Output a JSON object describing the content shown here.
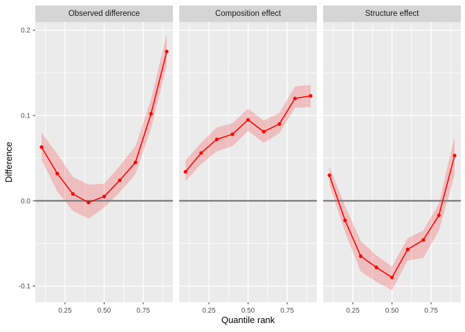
{
  "chart_data": {
    "type": "line",
    "title": "",
    "xlabel": "Quantile rank",
    "ylabel": "Difference",
    "x": [
      0.1,
      0.2,
      0.3,
      0.4,
      0.5,
      0.6,
      0.7,
      0.8,
      0.9
    ],
    "facets": [
      {
        "label": "Observed difference",
        "values": [
          0.063,
          0.032,
          0.008,
          -0.002,
          0.005,
          0.024,
          0.045,
          0.102,
          0.175
        ],
        "lower": [
          0.048,
          0.011,
          -0.012,
          -0.021,
          -0.008,
          0.01,
          0.031,
          0.085,
          0.158
        ],
        "upper": [
          0.08,
          0.055,
          0.028,
          0.019,
          0.02,
          0.041,
          0.064,
          0.119,
          0.196
        ]
      },
      {
        "label": "Composition effect",
        "values": [
          0.034,
          0.056,
          0.072,
          0.078,
          0.095,
          0.081,
          0.09,
          0.12,
          0.123
        ],
        "lower": [
          0.023,
          0.043,
          0.058,
          0.064,
          0.082,
          0.068,
          0.079,
          0.109,
          0.11
        ],
        "upper": [
          0.047,
          0.068,
          0.086,
          0.091,
          0.108,
          0.094,
          0.103,
          0.134,
          0.136
        ]
      },
      {
        "label": "Structure effect",
        "values": [
          0.03,
          -0.023,
          -0.065,
          -0.078,
          -0.09,
          -0.057,
          -0.046,
          -0.017,
          0.053
        ],
        "lower": [
          0.019,
          -0.037,
          -0.083,
          -0.095,
          -0.105,
          -0.07,
          -0.067,
          -0.035,
          0.03
        ],
        "upper": [
          0.04,
          -0.006,
          -0.047,
          -0.064,
          -0.077,
          -0.044,
          -0.035,
          -0.003,
          0.076
        ]
      }
    ],
    "hline": 0.0,
    "xlim": [
      0.06,
      0.94
    ],
    "ylim": [
      -0.119,
      0.2095
    ],
    "x_ticks": [
      0.25,
      0.5,
      0.75
    ],
    "x_tick_labels": [
      "0.25",
      "0.50",
      "0.75"
    ],
    "x_minor_ticks": [
      0.125,
      0.375,
      0.625,
      0.875
    ],
    "y_ticks": [
      0.2,
      0.1,
      0.0,
      -0.1
    ],
    "y_tick_labels": [
      "0.2",
      "0.1",
      "0.0",
      "-0.1"
    ],
    "y_minor_ticks": [
      0.15,
      0.05,
      -0.05
    ],
    "grid": true,
    "legend": "none"
  },
  "colors": {
    "line": "#ff0000",
    "point": "#ff0000",
    "ribbon": "#ff0000",
    "ribbon_opacity": "0.19",
    "zero_line": "#7f7f7f",
    "panel_bg": "#ebebeb",
    "strip_bg": "#d5d5d5",
    "grid": "#ffffff",
    "tick_text": "#4d4d4d",
    "tick_mark": "#333333"
  }
}
